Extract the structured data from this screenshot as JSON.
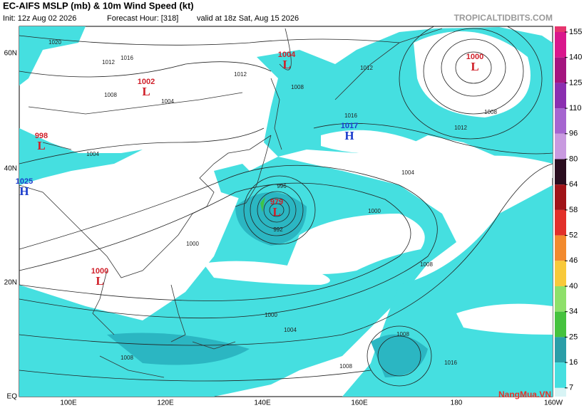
{
  "header": {
    "title": "EC-AIFS MSLP (mb) & 10m Wind Speed (kt)",
    "init": "Init: 12z Aug 02 2026",
    "forecast": "Forecast Hour: [318]",
    "valid": "valid at 18z Sat, Aug 15 2026",
    "site": "TROPICALTIDBITS.COM"
  },
  "latitudes": [
    "60N",
    "40N",
    "20N",
    "EQ"
  ],
  "longitudes": [
    "100E",
    "120E",
    "140E",
    "160E",
    "180",
    "160W"
  ],
  "centers": [
    {
      "kind": "L",
      "value": "1004"
    },
    {
      "kind": "L",
      "value": "1002"
    },
    {
      "kind": "L",
      "value": "998"
    },
    {
      "kind": "H",
      "value": "1025"
    },
    {
      "kind": "L",
      "value": "979"
    },
    {
      "kind": "L",
      "value": "1000"
    },
    {
      "kind": "H",
      "value": "1017"
    },
    {
      "kind": "L",
      "value": "1000"
    }
  ],
  "isobar_labels": [
    "1020",
    "1016",
    "1012",
    "1008",
    "1004",
    "1012",
    "1008",
    "1016",
    "1012",
    "1008",
    "1012",
    "1004",
    "1000",
    "1008",
    "992",
    "996",
    "1000",
    "1004",
    "1008",
    "1008",
    "1016",
    "1008",
    "1004",
    "1000"
  ],
  "colorbar": {
    "ticks": [
      155,
      140,
      125,
      110,
      96,
      80,
      64,
      58,
      52,
      46,
      40,
      34,
      25,
      16,
      7
    ]
  },
  "watermark": "NangMua.VN"
}
